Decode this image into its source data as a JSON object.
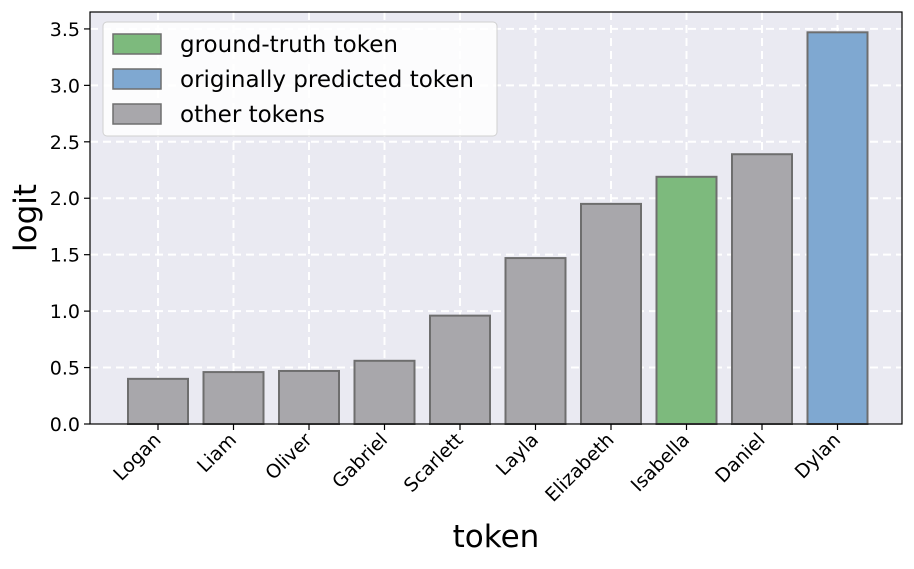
{
  "chart_data": {
    "type": "bar",
    "xlabel": "token",
    "ylabel": "logit",
    "ylim": [
      0,
      3.65
    ],
    "yticks": [
      0.0,
      0.5,
      1.0,
      1.5,
      2.0,
      2.5,
      3.0,
      3.5
    ],
    "ytick_labels": [
      "0.0",
      "0.5",
      "1.0",
      "1.5",
      "2.0",
      "2.5",
      "3.0",
      "3.5"
    ],
    "grid": true,
    "legend_position": "top-left",
    "categories": [
      "Logan",
      "Liam",
      "Oliver",
      "Gabriel",
      "Scarlett",
      "Layla",
      "Elizabeth",
      "Isabella",
      "Daniel",
      "Dylan"
    ],
    "values": [
      0.4,
      0.46,
      0.47,
      0.56,
      0.96,
      1.47,
      1.95,
      2.19,
      2.39,
      3.47
    ],
    "bar_kinds": [
      "other",
      "other",
      "other",
      "other",
      "other",
      "other",
      "other",
      "ground_truth",
      "other",
      "predicted"
    ],
    "legend": [
      {
        "kind": "ground_truth",
        "label": "ground-truth token",
        "color": "#7dba7d"
      },
      {
        "kind": "predicted",
        "label": "originally predicted token",
        "color": "#7fa8d1"
      },
      {
        "kind": "other",
        "label": "other tokens",
        "color": "#a8a7ab"
      }
    ],
    "colors": {
      "plot_background": "#eaeaf2",
      "grid": "#ffffff",
      "bar_edge": "#6e6e6e",
      "axes_edge": "#000000"
    }
  }
}
